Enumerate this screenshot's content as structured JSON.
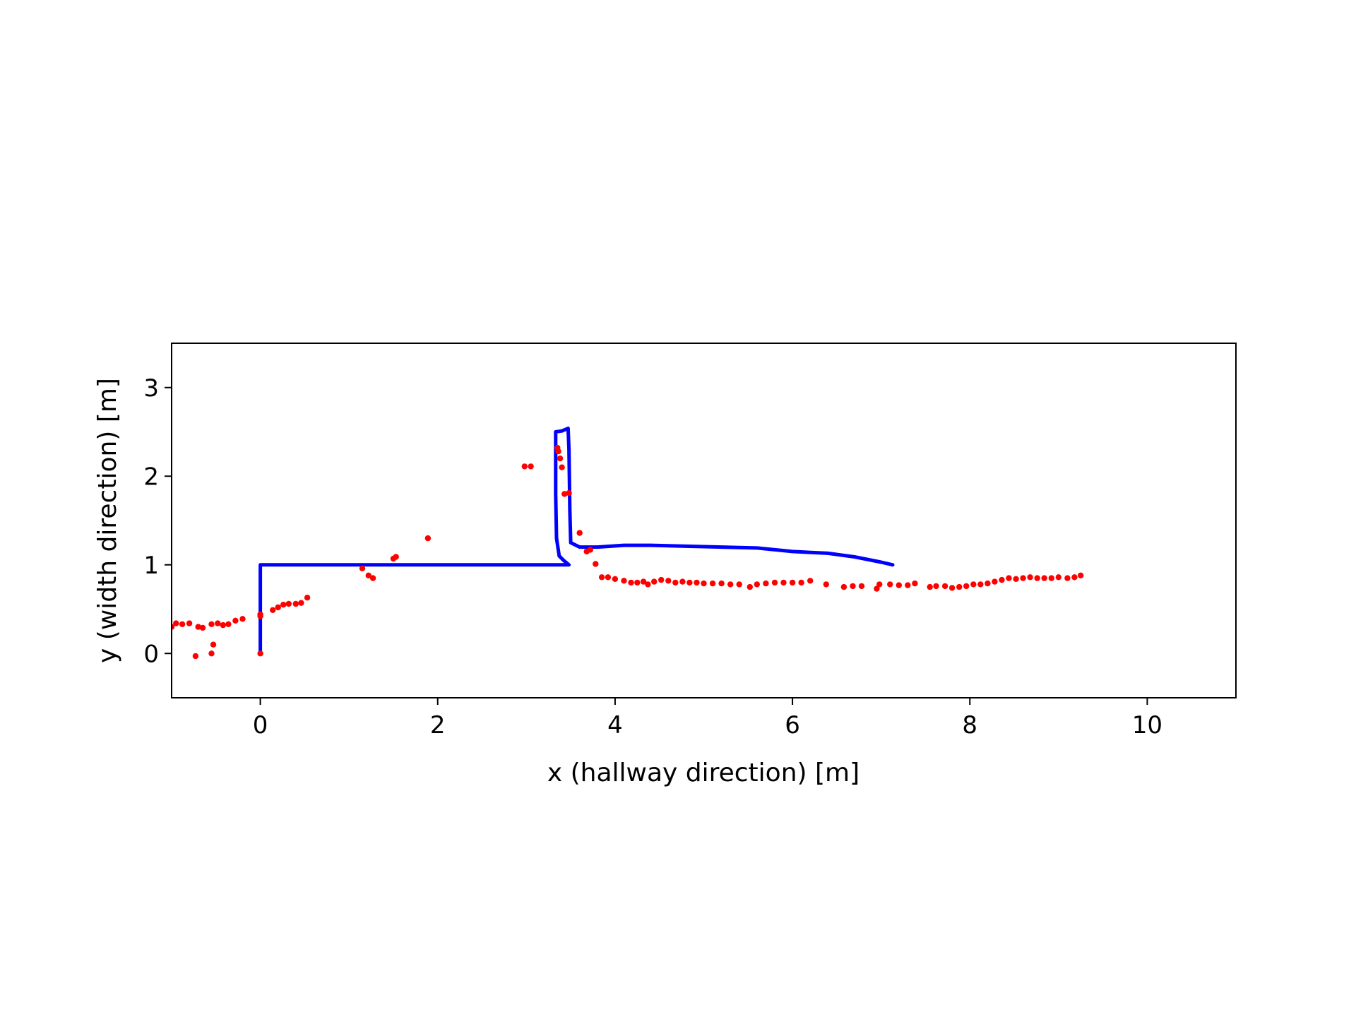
{
  "chart_data": {
    "type": "scatter",
    "title": "",
    "xlabel": "x (hallway direction) [m]",
    "ylabel": "y (width direction) [m]",
    "xlim": [
      -1,
      11
    ],
    "ylim": [
      -0.5,
      3.5
    ],
    "xticks": [
      0,
      2,
      4,
      6,
      8,
      10
    ],
    "yticks": [
      0,
      1,
      2,
      3
    ],
    "grid": false,
    "legend": "none",
    "series": [
      {
        "style": "line",
        "color": "#0000ff",
        "points": [
          [
            0,
            0
          ],
          [
            0,
            1
          ],
          [
            3.48,
            1.0
          ],
          [
            3.42,
            1.05
          ],
          [
            3.37,
            1.1
          ],
          [
            3.34,
            1.3
          ],
          [
            3.33,
            1.8
          ],
          [
            3.33,
            2.3
          ],
          [
            3.33,
            2.5
          ],
          [
            3.4,
            2.51
          ],
          [
            3.47,
            2.54
          ],
          [
            3.48,
            2.3
          ],
          [
            3.49,
            1.6
          ],
          [
            3.5,
            1.25
          ],
          [
            3.6,
            1.2
          ],
          [
            3.8,
            1.2
          ],
          [
            4.1,
            1.22
          ],
          [
            4.4,
            1.22
          ],
          [
            4.8,
            1.21
          ],
          [
            5.2,
            1.2
          ],
          [
            5.6,
            1.19
          ],
          [
            6.0,
            1.15
          ],
          [
            6.4,
            1.13
          ],
          [
            6.7,
            1.09
          ],
          [
            7.0,
            1.03
          ],
          [
            7.13,
            1.0
          ]
        ]
      },
      {
        "style": "points",
        "color": "#ff0000",
        "points": [
          [
            -1.0,
            0.3
          ],
          [
            -0.95,
            0.34
          ],
          [
            -0.88,
            0.33
          ],
          [
            -0.8,
            0.34
          ],
          [
            -0.73,
            -0.03
          ],
          [
            -0.7,
            0.3
          ],
          [
            -0.65,
            0.29
          ],
          [
            -0.55,
            0.0
          ],
          [
            -0.53,
            0.1
          ],
          [
            -0.55,
            0.33
          ],
          [
            -0.48,
            0.34
          ],
          [
            -0.42,
            0.32
          ],
          [
            -0.36,
            0.33
          ],
          [
            -0.28,
            0.37
          ],
          [
            -0.2,
            0.39
          ],
          [
            0.0,
            0.0
          ],
          [
            0.0,
            0.44
          ],
          [
            0.0,
            0.42
          ],
          [
            0.14,
            0.49
          ],
          [
            0.2,
            0.52
          ],
          [
            0.26,
            0.55
          ],
          [
            0.32,
            0.56
          ],
          [
            0.4,
            0.56
          ],
          [
            0.46,
            0.57
          ],
          [
            0.53,
            0.63
          ],
          [
            1.15,
            0.96
          ],
          [
            1.22,
            0.88
          ],
          [
            1.27,
            0.85
          ],
          [
            1.5,
            1.07
          ],
          [
            1.53,
            1.09
          ],
          [
            1.89,
            1.3
          ],
          [
            2.98,
            2.11
          ],
          [
            3.05,
            2.11
          ],
          [
            3.35,
            2.32
          ],
          [
            3.36,
            2.28
          ],
          [
            3.38,
            2.2
          ],
          [
            3.4,
            2.1
          ],
          [
            3.43,
            1.8
          ],
          [
            3.48,
            1.81
          ],
          [
            3.6,
            1.36
          ],
          [
            3.68,
            1.15
          ],
          [
            3.72,
            1.17
          ],
          [
            3.78,
            1.01
          ],
          [
            3.85,
            0.86
          ],
          [
            3.92,
            0.86
          ],
          [
            4.0,
            0.84
          ],
          [
            4.1,
            0.82
          ],
          [
            4.18,
            0.8
          ],
          [
            4.25,
            0.8
          ],
          [
            4.32,
            0.81
          ],
          [
            4.37,
            0.78
          ],
          [
            4.44,
            0.81
          ],
          [
            4.52,
            0.83
          ],
          [
            4.6,
            0.82
          ],
          [
            4.68,
            0.8
          ],
          [
            4.76,
            0.81
          ],
          [
            4.84,
            0.8
          ],
          [
            4.92,
            0.8
          ],
          [
            5.0,
            0.79
          ],
          [
            5.1,
            0.79
          ],
          [
            5.2,
            0.79
          ],
          [
            5.3,
            0.78
          ],
          [
            5.4,
            0.78
          ],
          [
            5.52,
            0.75
          ],
          [
            5.6,
            0.78
          ],
          [
            5.7,
            0.79
          ],
          [
            5.8,
            0.8
          ],
          [
            5.9,
            0.8
          ],
          [
            6.0,
            0.8
          ],
          [
            6.1,
            0.8
          ],
          [
            6.2,
            0.82
          ],
          [
            6.38,
            0.78
          ],
          [
            6.58,
            0.75
          ],
          [
            6.68,
            0.76
          ],
          [
            6.78,
            0.76
          ],
          [
            6.95,
            0.73
          ],
          [
            6.98,
            0.78
          ],
          [
            7.1,
            0.78
          ],
          [
            7.2,
            0.77
          ],
          [
            7.3,
            0.77
          ],
          [
            7.38,
            0.79
          ],
          [
            7.55,
            0.75
          ],
          [
            7.62,
            0.76
          ],
          [
            7.72,
            0.76
          ],
          [
            7.8,
            0.74
          ],
          [
            7.88,
            0.75
          ],
          [
            7.96,
            0.76
          ],
          [
            8.04,
            0.78
          ],
          [
            8.12,
            0.78
          ],
          [
            8.2,
            0.79
          ],
          [
            8.28,
            0.81
          ],
          [
            8.36,
            0.83
          ],
          [
            8.44,
            0.85
          ],
          [
            8.52,
            0.84
          ],
          [
            8.6,
            0.85
          ],
          [
            8.68,
            0.86
          ],
          [
            8.76,
            0.85
          ],
          [
            8.84,
            0.85
          ],
          [
            8.92,
            0.85
          ],
          [
            9.0,
            0.86
          ],
          [
            9.1,
            0.85
          ],
          [
            9.18,
            0.86
          ],
          [
            9.25,
            0.88
          ]
        ]
      }
    ]
  }
}
